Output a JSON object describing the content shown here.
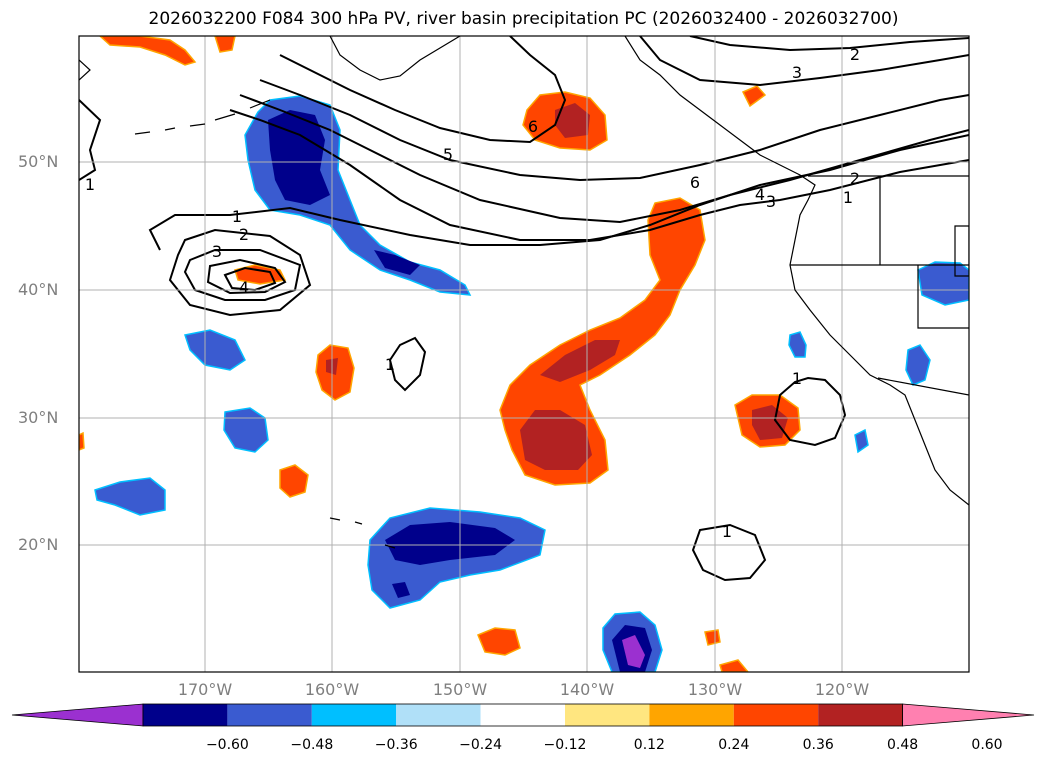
{
  "title": "2026032200 F084 300 hPa PV, river basin precipitation PC (2026032400 - 2026032700)",
  "map": {
    "lat_labels": [
      "50°N",
      "40°N",
      "30°N",
      "20°N"
    ],
    "lon_labels": [
      "170°W",
      "160°W",
      "150°W",
      "140°W",
      "130°W",
      "120°W"
    ]
  },
  "chart_data": {
    "type": "heatmap",
    "title": "2026032200 F084 300 hPa PV, river basin precipitation PC (2026032400 - 2026032700)",
    "contours_label_values": [
      "1",
      "2",
      "3",
      "4",
      "5",
      "6"
    ],
    "colorbar": {
      "ticks": [
        "−0.60",
        "−0.48",
        "−0.36",
        "−0.24",
        "−0.12",
        "0.12",
        "0.24",
        "0.36",
        "0.48",
        "0.60"
      ],
      "colors": [
        "#9b30d0",
        "#00008b",
        "#3a5bd0",
        "#00bfff",
        "#b0e0f8",
        "#ffffff",
        "#ffe680",
        "#ffa500",
        "#ff4500",
        "#b22222",
        "#ff80b0"
      ]
    }
  }
}
